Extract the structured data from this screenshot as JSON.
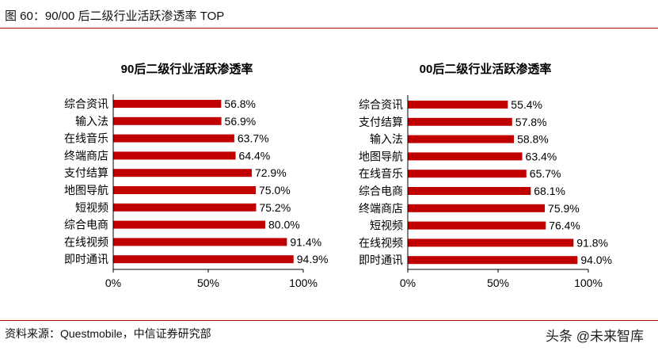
{
  "figure": {
    "title": "图 60：90/00 后二级行业活跃渗透率 TOP",
    "source": "资料来源：Questmobile，中信证券研究部",
    "watermark": "头条 @未来智库"
  },
  "colors": {
    "bar": "#c00000",
    "rule": "#c00000",
    "axis": "#000000"
  },
  "chart_data": [
    {
      "type": "bar",
      "orientation": "horizontal",
      "title": "90后二级行业活跃渗透率",
      "categories": [
        "综合资讯",
        "输入法",
        "在线音乐",
        "终端商店",
        "支付结算",
        "地图导航",
        "短视频",
        "综合电商",
        "在线视频",
        "即时通讯"
      ],
      "values": [
        56.8,
        56.9,
        63.7,
        64.4,
        72.9,
        75.0,
        75.2,
        80.0,
        91.4,
        94.9
      ],
      "value_labels": [
        "56.8%",
        "56.9%",
        "63.7%",
        "64.4%",
        "72.9%",
        "75.0%",
        "75.2%",
        "80.0%",
        "91.4%",
        "94.9%"
      ],
      "xlim": [
        0,
        100
      ],
      "xticks": [
        "0%",
        "50%",
        "100%"
      ],
      "grid": false
    },
    {
      "type": "bar",
      "orientation": "horizontal",
      "title": "00后二级行业活跃渗透率",
      "categories": [
        "综合资讯",
        "支付结算",
        "输入法",
        "地图导航",
        "在线音乐",
        "综合电商",
        "终端商店",
        "短视频",
        "在线视频",
        "即时通讯"
      ],
      "values": [
        55.4,
        57.8,
        58.8,
        63.4,
        65.7,
        68.1,
        75.9,
        76.4,
        91.8,
        94.0
      ],
      "value_labels": [
        "55.4%",
        "57.8%",
        "58.8%",
        "63.4%",
        "65.7%",
        "68.1%",
        "75.9%",
        "76.4%",
        "91.8%",
        "94.0%"
      ],
      "xlim": [
        0,
        100
      ],
      "xticks": [
        "0%",
        "50%",
        "100%"
      ],
      "grid": false
    }
  ]
}
